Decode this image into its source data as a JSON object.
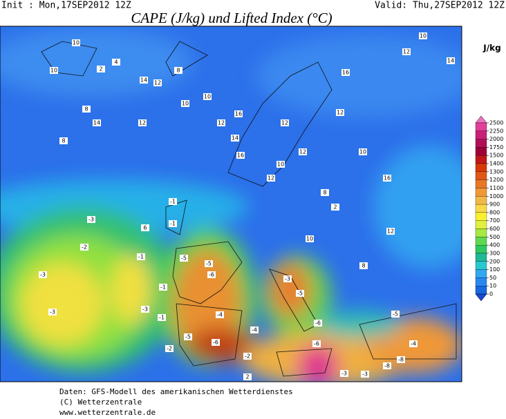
{
  "header": {
    "init": "Init : Mon,17SEP2012 12Z",
    "valid": "Valid: Thu,27SEP2012 12Z",
    "title": "CAPE (J/kg) und Lifted Index (°C)"
  },
  "legend": {
    "unit": "J/kg",
    "ticks": [
      2500,
      2250,
      2000,
      1750,
      1500,
      1400,
      1300,
      1200,
      1100,
      1000,
      900,
      800,
      700,
      600,
      500,
      400,
      300,
      200,
      100,
      50,
      10,
      0
    ],
    "colors": [
      "#f070c0",
      "#e0409a",
      "#c82078",
      "#b01058",
      "#a00038",
      "#c01818",
      "#d83808",
      "#e05818",
      "#e87828",
      "#f09838",
      "#f0b848",
      "#f8d848",
      "#f8f030",
      "#e0f040",
      "#a8e840",
      "#60d850",
      "#30c860",
      "#20b898",
      "#28c8d0",
      "#30a8f0",
      "#2888f0",
      "#1868e0",
      "#1848d8"
    ]
  },
  "map": {
    "contour_labels": [
      10,
      10,
      4,
      2,
      8,
      14,
      12,
      14,
      10,
      12,
      8,
      16,
      10,
      14,
      16,
      12,
      10,
      12,
      16,
      12,
      10,
      14,
      16,
      8,
      12,
      8,
      10,
      6,
      8,
      2,
      12,
      10,
      12,
      12,
      -3,
      -2,
      -3,
      -3,
      -1,
      -5,
      -5,
      -6,
      -4,
      -6,
      -5,
      -3,
      -5,
      -8,
      -3,
      -6,
      -6,
      -8,
      -4,
      -5,
      -1,
      -1,
      -3,
      -2,
      -4,
      -1,
      -2,
      -3,
      2,
      -1
    ]
  },
  "footer": {
    "line1": "Daten: GFS-Modell des amerikanischen Wetterdienstes",
    "line2": "(C) Wetterzentrale",
    "line3": "www.wetterzentrale.de"
  }
}
